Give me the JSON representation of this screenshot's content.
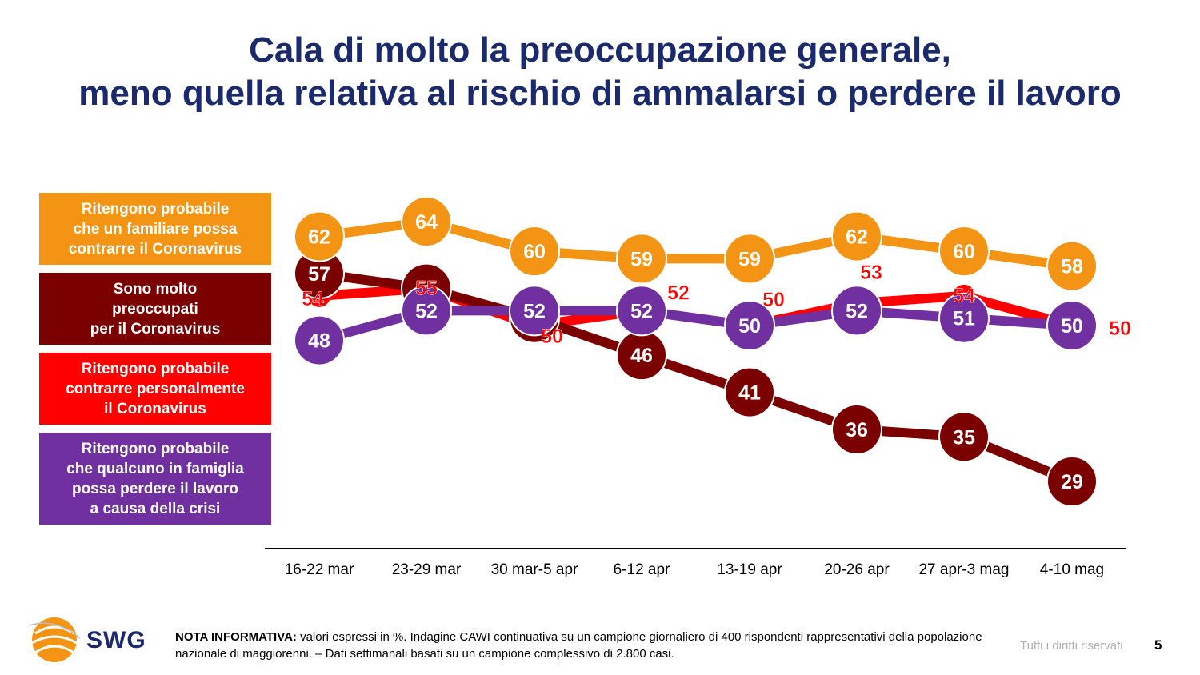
{
  "title": {
    "line1": "Cala di molto la preoccupazione generale,",
    "line2": "meno quella relativa al rischio di ammalarsi o perdere il lavoro"
  },
  "legend": [
    {
      "label": "Ritengono probabile\nche un familiare possa\ncontrarre il Coronavirus",
      "color": "#f39414"
    },
    {
      "label": "Sono molto\npreoccupati\nper il Coronavirus",
      "color": "#7b0000"
    },
    {
      "label": "Ritengono probabile\ncontrarre personalmente\nil Coronavirus",
      "color": "#ff0000"
    },
    {
      "label": "Ritengono probabile\nche qualcuno in famiglia\npossa perdere il lavoro\na causa della crisi",
      "color": "#7030a0"
    }
  ],
  "chart_data": {
    "type": "line",
    "categories": [
      "16-22 mar",
      "23-29 mar",
      "30 mar-5 apr",
      "6-12 apr",
      "13-19 apr",
      "20-26 apr",
      "27 apr-3 mag",
      "4-10 mag"
    ],
    "series": [
      {
        "name": "Ritengono probabile che un familiare possa contrarre il Coronavirus",
        "color": "#f39414",
        "values": [
          62,
          64,
          60,
          59,
          59,
          62,
          60,
          58
        ]
      },
      {
        "name": "Sono molto preoccupati per il Coronavirus",
        "color": "#7b0000",
        "values": [
          57,
          55,
          51,
          46,
          41,
          36,
          35,
          29
        ]
      },
      {
        "name": "Ritengono probabile contrarre personalmente il Coronavirus",
        "color": "#ff0000",
        "values": [
          54,
          55,
          50,
          52,
          50,
          53,
          54,
          50
        ]
      },
      {
        "name": "Ritengono probabile che qualcuno in famiglia possa perdere il lavoro a causa della crisi",
        "color": "#7030a0",
        "values": [
          48,
          52,
          52,
          52,
          50,
          52,
          51,
          50
        ]
      }
    ],
    "ylim": [
      25,
      70
    ],
    "unit": "%"
  },
  "footer": {
    "logo_text": "SWG",
    "note_bold": "NOTA INFORMATIVA:",
    "note_text": " valori espressi in %. Indagine CAWI continuativa su un campione giornaliero di 400 rispondenti rappresentativi della popolazione nazionale di maggiorenni. – Dati settimanali basati su un campione complessivo di 2.800 casi.",
    "rights": "Tutti i diritti riservati",
    "page_number": "5"
  }
}
